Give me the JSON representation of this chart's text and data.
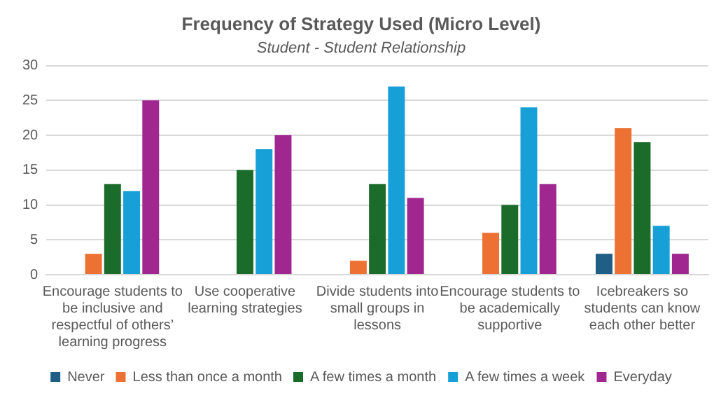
{
  "chart_data": {
    "type": "bar",
    "title": "Frequency of Strategy Used (Micro Level)",
    "subtitle": "Student - Student Relationship",
    "categories": [
      "Encourage students to be inclusive and respectful of others’ learning progress",
      "Use cooperative learning strategies",
      "Divide students into small groups in lessons",
      "Encourage students to be academically supportive",
      "Icebreakers so students can know each other better"
    ],
    "series": [
      {
        "name": "Never",
        "color": "#1f5f86",
        "values": [
          0,
          0,
          0,
          0,
          3
        ]
      },
      {
        "name": "Less than once a month",
        "color": "#ed7132",
        "values": [
          3,
          0,
          2,
          6,
          21
        ]
      },
      {
        "name": "A few times a month",
        "color": "#1b6b2a",
        "values": [
          13,
          15,
          13,
          10,
          19
        ]
      },
      {
        "name": "A few times a week",
        "color": "#17a0d8",
        "values": [
          12,
          18,
          27,
          24,
          7
        ]
      },
      {
        "name": "Everyday",
        "color": "#a0278f",
        "values": [
          25,
          20,
          11,
          13,
          3
        ]
      }
    ],
    "ylim": [
      0,
      30
    ],
    "yticks": [
      0,
      5,
      10,
      15,
      20,
      25,
      30
    ],
    "grid": "y",
    "legend": "bottom"
  }
}
